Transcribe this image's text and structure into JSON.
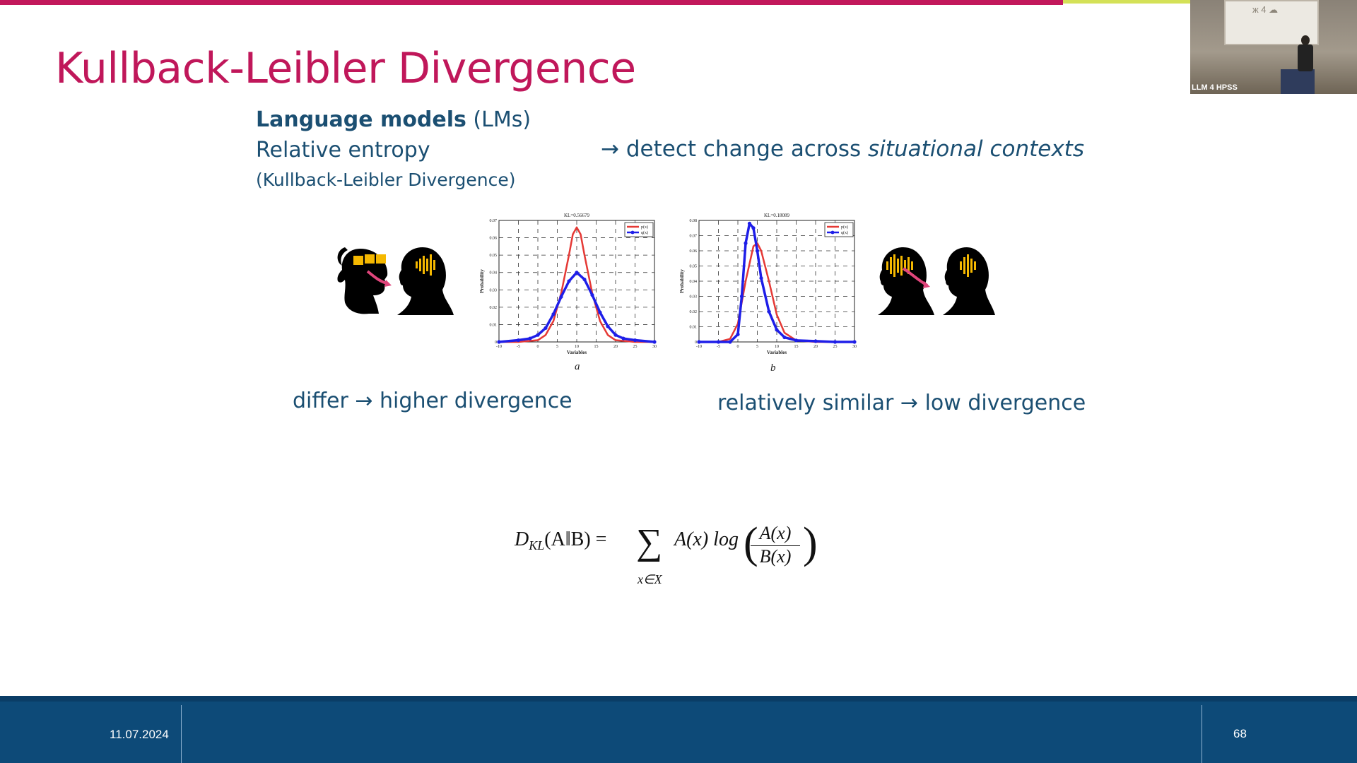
{
  "slide": {
    "title": "Kullback-Leibler Divergence",
    "line1_bold": "Language models",
    "line1_rest": " (LMs)",
    "line2": "Relative entropy",
    "line3": "(Kullback-Leibler Divergence)",
    "arrow": "→",
    "arrow_text": "detect change across ",
    "arrow_text_italic": "situational contexts",
    "caption_left": "differ → higher divergence",
    "caption_right": "relatively similar → low divergence",
    "formula": {
      "lhs": "D",
      "lhs_sub": "KL",
      "args": "(A‖B) =",
      "sum": "∑",
      "sum_sub": "x∈X",
      "term": "A(x) log",
      "num": "A(x)",
      "den": "B(x)"
    }
  },
  "chart_data": [
    {
      "type": "line",
      "panel": "a",
      "title": "KL=0.56679",
      "xlabel": "Variables",
      "ylabel": "Probability",
      "xlim": [
        -10,
        30
      ],
      "ylim": [
        0,
        0.07
      ],
      "xticks": [
        -10,
        -5,
        0,
        5,
        10,
        15,
        20,
        25,
        30
      ],
      "yticks": [
        0,
        0.01,
        0.02,
        0.03,
        0.04,
        0.05,
        0.06,
        0.07
      ],
      "grid": true,
      "legend": "top-right",
      "series": [
        {
          "name": "p(x)",
          "color": "#e53935",
          "markers": false,
          "x": [
            -10,
            -5,
            0,
            2,
            4,
            6,
            8,
            9,
            10,
            11,
            12,
            14,
            16,
            18,
            20,
            25,
            30
          ],
          "y": [
            0,
            0,
            0.001,
            0.004,
            0.012,
            0.028,
            0.05,
            0.062,
            0.066,
            0.062,
            0.05,
            0.028,
            0.012,
            0.004,
            0.001,
            0,
            0
          ]
        },
        {
          "name": "q(x)",
          "color": "#1e1ee8",
          "markers": true,
          "x": [
            -10,
            -5,
            -2,
            0,
            2,
            4,
            6,
            8,
            10,
            12,
            14,
            16,
            18,
            20,
            22,
            25,
            30
          ],
          "y": [
            0,
            0.001,
            0.002,
            0.004,
            0.008,
            0.016,
            0.026,
            0.035,
            0.04,
            0.036,
            0.027,
            0.017,
            0.009,
            0.004,
            0.002,
            0.001,
            0
          ]
        }
      ]
    },
    {
      "type": "line",
      "panel": "b",
      "title": "KL=0.18089",
      "xlabel": "Variables",
      "ylabel": "Probability",
      "xlim": [
        -10,
        30
      ],
      "ylim": [
        0,
        0.08
      ],
      "xticks": [
        -10,
        -5,
        0,
        5,
        10,
        15,
        20,
        25,
        30
      ],
      "yticks": [
        0,
        0.01,
        0.02,
        0.03,
        0.04,
        0.05,
        0.06,
        0.07,
        0.08
      ],
      "grid": true,
      "legend": "top-right",
      "series": [
        {
          "name": "p(x)",
          "color": "#e53935",
          "markers": false,
          "x": [
            -10,
            -5,
            -2,
            0,
            2,
            4,
            5,
            6,
            8,
            10,
            12,
            15,
            20,
            30
          ],
          "y": [
            0,
            0,
            0.002,
            0.012,
            0.04,
            0.063,
            0.065,
            0.06,
            0.04,
            0.018,
            0.006,
            0.001,
            0,
            0
          ]
        },
        {
          "name": "q(x)",
          "color": "#1e1ee8",
          "markers": true,
          "x": [
            -10,
            -5,
            -2,
            0,
            1,
            2,
            3,
            4,
            5,
            6,
            8,
            10,
            12,
            15,
            20,
            25,
            30
          ],
          "y": [
            0,
            0,
            0,
            0.005,
            0.03,
            0.065,
            0.078,
            0.075,
            0.06,
            0.042,
            0.02,
            0.008,
            0.003,
            0.001,
            0.0005,
            0,
            0
          ]
        }
      ]
    }
  ],
  "footer": {
    "date": "11.07.2024",
    "page": "68"
  },
  "webcam": {
    "label": "LLM 4 HPSS",
    "screen_text": "ж 4 ☁"
  },
  "colors": {
    "title": "#c0175a",
    "body_text": "#1b4f72",
    "footer_bg": "#0d4a78",
    "top_bar": "#c2185b",
    "top_bar_accent": "#d4e157",
    "head_highlight": "#f5b800",
    "arrow_pink": "#e0457b"
  }
}
